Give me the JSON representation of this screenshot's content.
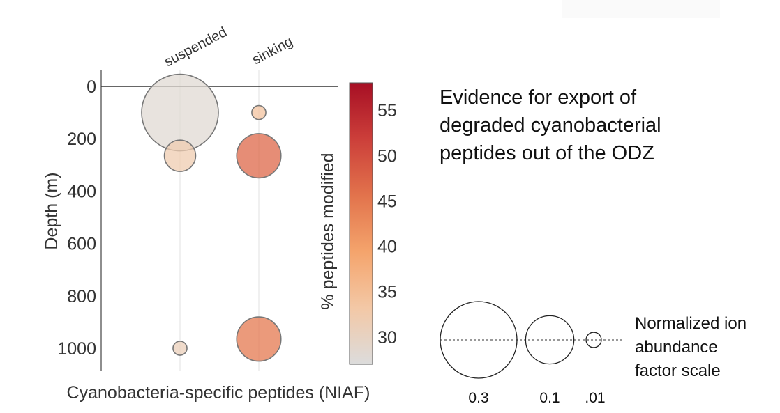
{
  "chart_data": {
    "type": "scatter",
    "categories": [
      "suspended",
      "sinking"
    ],
    "xlabel": "Cyanobacteria-specific peptides (NIAF)",
    "ylabel": "Depth (m)",
    "ylim": [
      0,
      1000
    ],
    "yticks": [
      0,
      200,
      400,
      600,
      800,
      1000
    ],
    "points": [
      {
        "category": "suspended",
        "depth": 100,
        "niaf": 0.3,
        "pct_modified": 28
      },
      {
        "category": "suspended",
        "depth": 265,
        "niaf": 0.05,
        "pct_modified": 32
      },
      {
        "category": "suspended",
        "depth": 1000,
        "niaf": 0.01,
        "pct_modified": 31
      },
      {
        "category": "sinking",
        "depth": 100,
        "niaf": 0.01,
        "pct_modified": 34
      },
      {
        "category": "sinking",
        "depth": 265,
        "niaf": 0.1,
        "pct_modified": 47
      },
      {
        "category": "sinking",
        "depth": 965,
        "niaf": 0.1,
        "pct_modified": 45
      }
    ],
    "colorbar": {
      "label": "% peptides modified",
      "range": [
        27,
        58
      ],
      "ticks": [
        30,
        35,
        40,
        45,
        50,
        55
      ],
      "colors": [
        "#dcdcdc",
        "#f3c8a6",
        "#f4a46c",
        "#e2734c",
        "#cc3f3a",
        "#a70f24"
      ]
    }
  },
  "title_lines": [
    "Evidence for export of",
    "degraded cyanobacterial",
    "peptides out of the ODZ"
  ],
  "size_legend": {
    "caption_lines": [
      "Normalized ion",
      "abundance",
      "factor scale"
    ],
    "items": [
      {
        "label": "0.3",
        "value": 0.3
      },
      {
        "label": "0.1",
        "value": 0.1
      },
      {
        "label": ".01",
        "value": 0.01
      }
    ]
  }
}
